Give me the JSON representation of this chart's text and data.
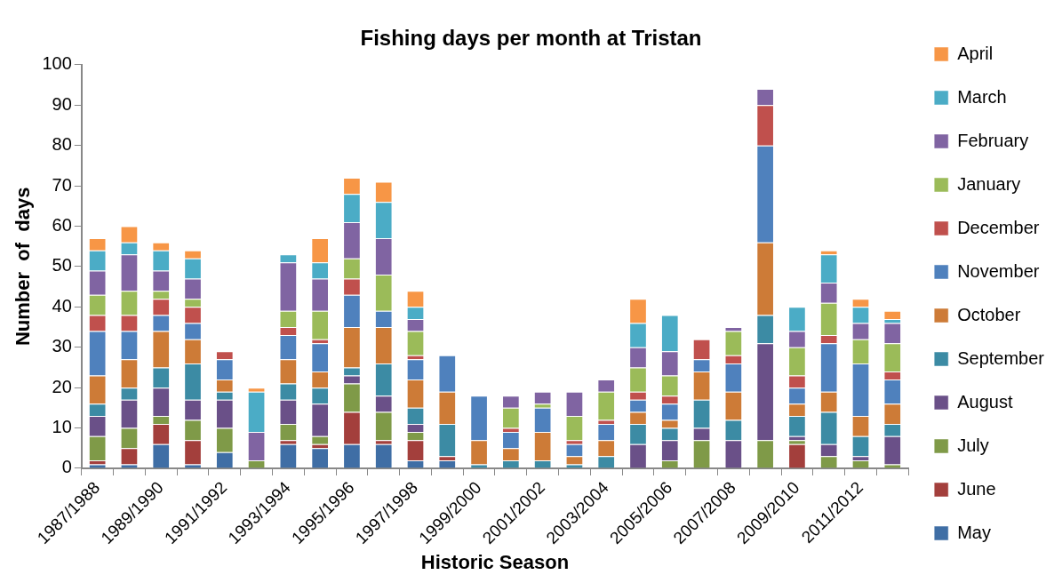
{
  "chart_data": {
    "type": "bar",
    "title": "Fishing days per month at Tristan",
    "xlabel": "Historic Season",
    "ylabel": "Number  of  days",
    "categories": [
      "1987/1988",
      null,
      "1989/1990",
      null,
      "1991/1992",
      null,
      "1993/1994",
      null,
      "1995/1996",
      null,
      "1997/1998",
      null,
      "1999/2000",
      null,
      "2001/2002",
      null,
      "2003/2004",
      null,
      "2005/2006",
      null,
      "2007/2008",
      null,
      "2009/2010",
      null,
      "2011/2012",
      null
    ],
    "stacked": true,
    "ylim": [
      0,
      100
    ],
    "yticks": [
      0,
      10,
      20,
      30,
      40,
      50,
      60,
      70,
      80,
      90,
      100
    ],
    "grid": false,
    "legend": "right",
    "series": [
      {
        "name": "May",
        "color": "#3f6ea5",
        "values": [
          1,
          1,
          6,
          1,
          4,
          0,
          6,
          5,
          6,
          6,
          2,
          2,
          0,
          0,
          0,
          0,
          0,
          0,
          0,
          0,
          0,
          0,
          0,
          0,
          0,
          0
        ]
      },
      {
        "name": "June",
        "color": "#a33f3c",
        "values": [
          1,
          4,
          5,
          6,
          0,
          0,
          1,
          1,
          8,
          1,
          5,
          1,
          0,
          0,
          0,
          0,
          0,
          0,
          0,
          0,
          0,
          0,
          6,
          0,
          0,
          0
        ]
      },
      {
        "name": "July",
        "color": "#7f9a48",
        "values": [
          6,
          5,
          2,
          5,
          6,
          2,
          4,
          2,
          7,
          7,
          2,
          0,
          0,
          0,
          0,
          0,
          0,
          0,
          2,
          7,
          0,
          7,
          1,
          3,
          2,
          1
        ]
      },
      {
        "name": "August",
        "color": "#6a5088",
        "values": [
          5,
          7,
          7,
          5,
          7,
          0,
          6,
          8,
          2,
          4,
          2,
          0,
          0,
          0,
          0,
          0,
          0,
          6,
          5,
          3,
          7,
          24,
          1,
          3,
          1,
          7
        ]
      },
      {
        "name": "September",
        "color": "#3c8ba4",
        "values": [
          3,
          3,
          5,
          9,
          2,
          0,
          4,
          4,
          2,
          8,
          4,
          8,
          1,
          2,
          2,
          1,
          3,
          5,
          3,
          7,
          5,
          7,
          5,
          8,
          5,
          3
        ]
      },
      {
        "name": "October",
        "color": "#cd7b37",
        "values": [
          7,
          7,
          9,
          6,
          3,
          0,
          6,
          4,
          10,
          9,
          7,
          8,
          6,
          3,
          7,
          2,
          4,
          3,
          2,
          7,
          7,
          18,
          3,
          5,
          5,
          5
        ]
      },
      {
        "name": "November",
        "color": "#4f81bd",
        "values": [
          11,
          7,
          4,
          4,
          5,
          0,
          6,
          7,
          8,
          4,
          5,
          9,
          11,
          4,
          6,
          3,
          4,
          3,
          4,
          3,
          7,
          24,
          4,
          12,
          13,
          6
        ]
      },
      {
        "name": "December",
        "color": "#c0504d",
        "values": [
          4,
          4,
          4,
          4,
          2,
          0,
          2,
          1,
          4,
          0,
          1,
          0,
          0,
          1,
          0,
          1,
          1,
          2,
          2,
          5,
          2,
          10,
          3,
          2,
          0,
          2
        ]
      },
      {
        "name": "January",
        "color": "#9bbb59",
        "values": [
          5,
          6,
          2,
          2,
          0,
          0,
          4,
          7,
          5,
          9,
          6,
          0,
          0,
          5,
          1,
          6,
          7,
          6,
          5,
          0,
          6,
          0,
          7,
          8,
          6,
          7
        ]
      },
      {
        "name": "February",
        "color": "#8064a2",
        "values": [
          6,
          9,
          5,
          5,
          0,
          7,
          12,
          8,
          9,
          9,
          3,
          0,
          0,
          3,
          3,
          6,
          3,
          5,
          6,
          0,
          1,
          4,
          4,
          5,
          4,
          5
        ]
      },
      {
        "name": "March",
        "color": "#4bacc6",
        "values": [
          5,
          3,
          5,
          5,
          0,
          10,
          2,
          4,
          7,
          9,
          3,
          0,
          0,
          0,
          0,
          0,
          0,
          6,
          9,
          0,
          0,
          0,
          6,
          7,
          4,
          1
        ]
      },
      {
        "name": "April",
        "color": "#f79646",
        "values": [
          3,
          4,
          2,
          2,
          0,
          1,
          0,
          6,
          4,
          5,
          4,
          0,
          0,
          0,
          0,
          0,
          0,
          6,
          0,
          0,
          0,
          0,
          0,
          1,
          2,
          2
        ]
      }
    ]
  }
}
